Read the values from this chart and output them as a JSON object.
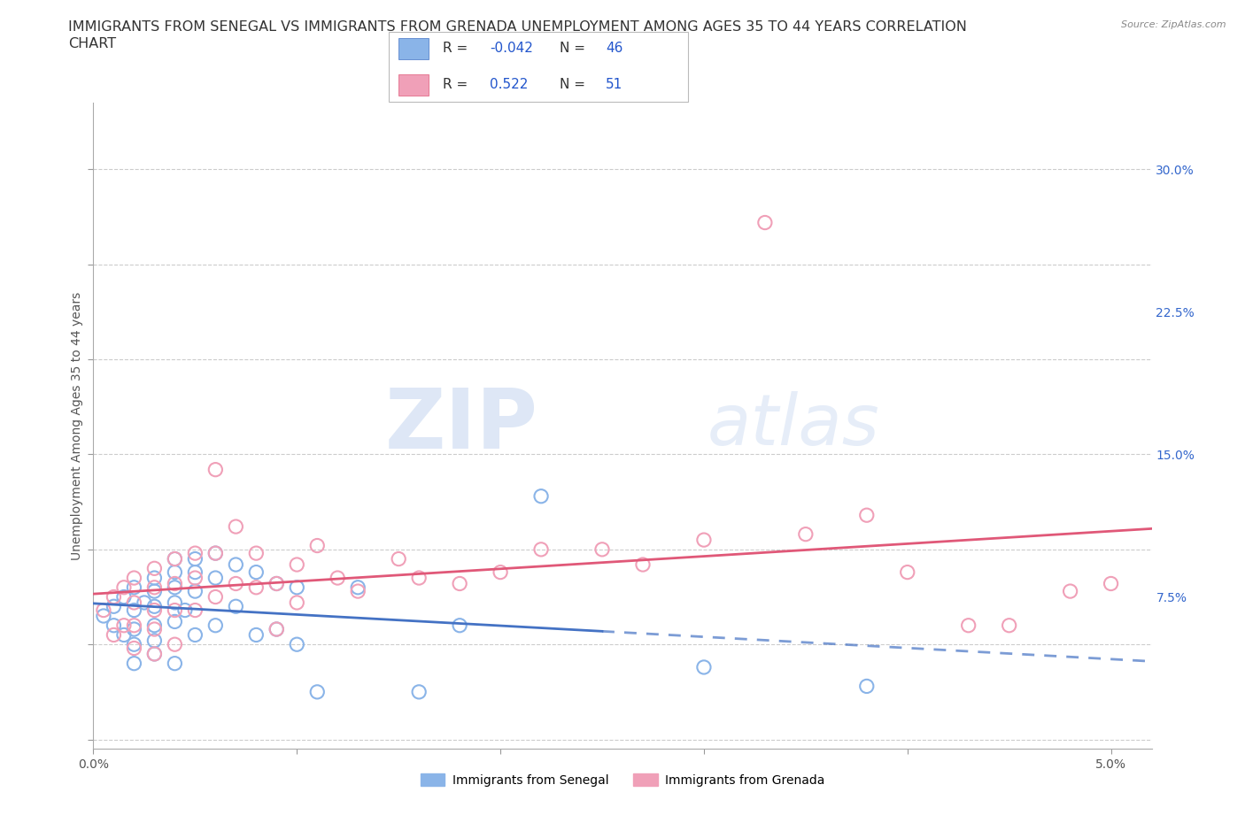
{
  "title_line1": "IMMIGRANTS FROM SENEGAL VS IMMIGRANTS FROM GRENADA UNEMPLOYMENT AMONG AGES 35 TO 44 YEARS CORRELATION",
  "title_line2": "CHART",
  "source": "Source: ZipAtlas.com",
  "ylabel": "Unemployment Among Ages 35 to 44 years",
  "xlim": [
    0.0,
    0.052
  ],
  "ylim": [
    -0.005,
    0.335
  ],
  "xticks": [
    0.0,
    0.01,
    0.02,
    0.03,
    0.04,
    0.05
  ],
  "xticklabels": [
    "0.0%",
    "",
    "",
    "",
    "",
    "5.0%"
  ],
  "yticks": [
    0.0,
    0.075,
    0.15,
    0.225,
    0.3
  ],
  "yticklabels": [
    "",
    "7.5%",
    "15.0%",
    "22.5%",
    "30.0%"
  ],
  "watermark_zip": "ZIP",
  "watermark_atlas": "atlas",
  "senegal_color": "#8AB4E8",
  "grenada_color": "#F0A0B8",
  "senegal_line_color": "#4472C4",
  "grenada_line_color": "#E05878",
  "R_senegal": -0.042,
  "N_senegal": 46,
  "R_grenada": 0.522,
  "N_grenada": 51,
  "senegal_scatter_x": [
    0.0005,
    0.001,
    0.001,
    0.0015,
    0.0015,
    0.002,
    0.002,
    0.002,
    0.002,
    0.002,
    0.0025,
    0.003,
    0.003,
    0.003,
    0.003,
    0.003,
    0.003,
    0.004,
    0.004,
    0.004,
    0.004,
    0.004,
    0.004,
    0.0045,
    0.005,
    0.005,
    0.005,
    0.005,
    0.006,
    0.006,
    0.006,
    0.007,
    0.007,
    0.008,
    0.008,
    0.009,
    0.009,
    0.01,
    0.01,
    0.011,
    0.013,
    0.016,
    0.018,
    0.022,
    0.03,
    0.038
  ],
  "senegal_scatter_y": [
    0.065,
    0.07,
    0.06,
    0.075,
    0.055,
    0.08,
    0.068,
    0.058,
    0.05,
    0.04,
    0.072,
    0.085,
    0.078,
    0.07,
    0.06,
    0.052,
    0.045,
    0.095,
    0.088,
    0.08,
    0.072,
    0.062,
    0.04,
    0.068,
    0.095,
    0.088,
    0.078,
    0.055,
    0.098,
    0.085,
    0.06,
    0.092,
    0.07,
    0.088,
    0.055,
    0.082,
    0.058,
    0.08,
    0.05,
    0.025,
    0.08,
    0.025,
    0.06,
    0.128,
    0.038,
    0.028
  ],
  "grenada_scatter_x": [
    0.0005,
    0.001,
    0.001,
    0.0015,
    0.0015,
    0.002,
    0.002,
    0.002,
    0.002,
    0.003,
    0.003,
    0.003,
    0.003,
    0.003,
    0.004,
    0.004,
    0.004,
    0.004,
    0.005,
    0.005,
    0.005,
    0.006,
    0.006,
    0.006,
    0.007,
    0.007,
    0.008,
    0.008,
    0.009,
    0.009,
    0.01,
    0.01,
    0.011,
    0.012,
    0.013,
    0.015,
    0.016,
    0.018,
    0.02,
    0.022,
    0.025,
    0.027,
    0.03,
    0.033,
    0.035,
    0.038,
    0.04,
    0.043,
    0.045,
    0.048,
    0.05
  ],
  "grenada_scatter_y": [
    0.068,
    0.075,
    0.055,
    0.08,
    0.06,
    0.085,
    0.072,
    0.06,
    0.048,
    0.09,
    0.08,
    0.068,
    0.058,
    0.045,
    0.095,
    0.082,
    0.068,
    0.05,
    0.098,
    0.085,
    0.068,
    0.142,
    0.098,
    0.075,
    0.112,
    0.082,
    0.098,
    0.08,
    0.082,
    0.058,
    0.092,
    0.072,
    0.102,
    0.085,
    0.078,
    0.095,
    0.085,
    0.082,
    0.088,
    0.1,
    0.1,
    0.092,
    0.105,
    0.272,
    0.108,
    0.118,
    0.088,
    0.06,
    0.06,
    0.078,
    0.082
  ],
  "bg_color": "#FFFFFF",
  "grid_color": "#CCCCCC",
  "title_fontsize": 11.5,
  "axis_fontsize": 10,
  "tick_fontsize": 10,
  "legend_fontsize": 11
}
